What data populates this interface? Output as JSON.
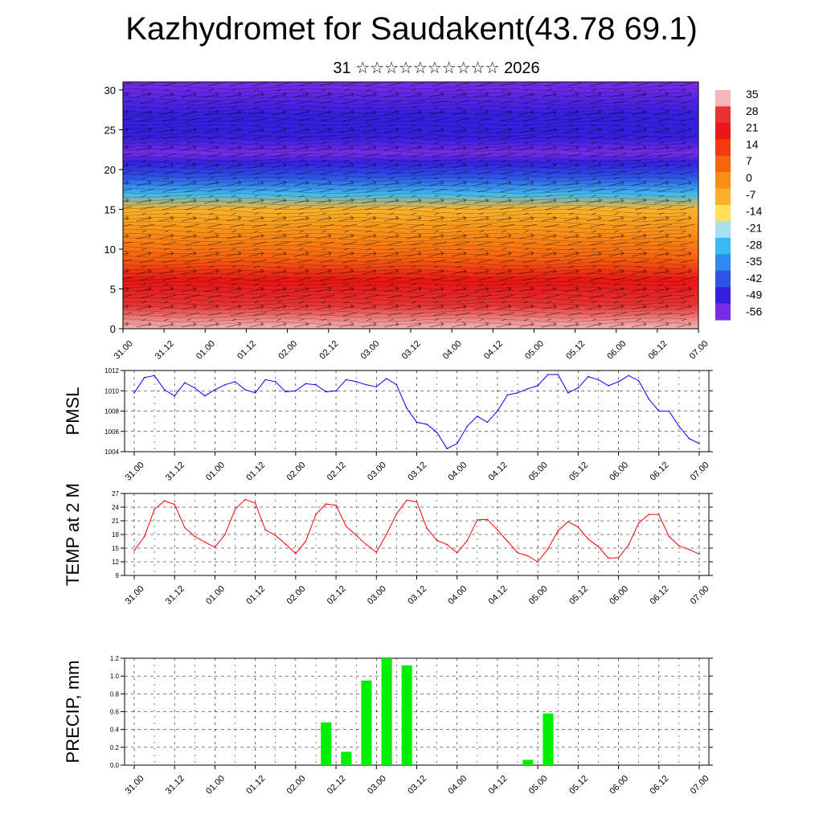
{
  "title": "Kazhydromet for Saudakent(43.78 69.1)",
  "subtitle": "31 ☆☆☆☆☆☆☆☆☆☆ 2026",
  "time_labels": [
    "31.00",
    "31.12",
    "01.00",
    "01.12",
    "02.00",
    "02.12",
    "03.00",
    "03.12",
    "04.00",
    "04.12",
    "05.00",
    "05.12",
    "06.00",
    "06.12",
    "07.00"
  ],
  "chart_data": [
    {
      "type": "heatmap",
      "name": "temperature-height-section",
      "ylim": [
        0,
        31
      ],
      "yticks": [
        0,
        5,
        10,
        15,
        20,
        25,
        30
      ],
      "colorbar": {
        "labels": [
          "35",
          "28",
          "21",
          "14",
          "7",
          "0",
          "-7",
          "-14",
          "-21",
          "-28",
          "-35",
          "-42",
          "-49",
          "-56"
        ],
        "colors": [
          "#F4B6B6",
          "#E63333",
          "#E81616",
          "#F23A10",
          "#F7640F",
          "#F98E17",
          "#FBB22A",
          "#FFE15A",
          "#A9E0F2",
          "#3DB8F0",
          "#2B8CEB",
          "#2F54E5",
          "#3520E0",
          "#7A2BE6"
        ]
      },
      "approx_temperature_profile": {
        "heights": [
          0,
          3,
          6,
          9,
          12,
          15,
          17,
          19,
          21,
          22,
          24,
          27,
          31
        ],
        "values": [
          35,
          26,
          18,
          10,
          2,
          -10,
          -25,
          -40,
          -52,
          -56,
          -48,
          -52,
          -60
        ]
      }
    },
    {
      "type": "line",
      "name": "pmsl",
      "ylabel": "PMSL",
      "ylim": [
        1004,
        1012
      ],
      "yticks": [
        1004,
        1006,
        1008,
        1010,
        1012
      ],
      "color": "#0000FF",
      "values": [
        1009.8,
        1011.3,
        1011.5,
        1010.1,
        1009.5,
        1010.8,
        1010.3,
        1009.5,
        1010.1,
        1010.6,
        1010.9,
        1010.1,
        1009.8,
        1011.1,
        1010.9,
        1009.9,
        1010.0,
        1010.7,
        1010.6,
        1009.9,
        1010.0,
        1011.1,
        1010.9,
        1010.6,
        1010.4,
        1011.2,
        1010.6,
        1008.3,
        1006.9,
        1006.7,
        1005.9,
        1004.3,
        1004.8,
        1006.5,
        1007.5,
        1006.9,
        1008.0,
        1009.6,
        1009.8,
        1010.2,
        1010.5,
        1011.6,
        1011.6,
        1009.8,
        1010.3,
        1011.4,
        1011.1,
        1010.5,
        1010.9,
        1011.5,
        1011.0,
        1009.2,
        1008.0,
        1008.0,
        1006.5,
        1005.3,
        1004.8
      ]
    },
    {
      "type": "line",
      "name": "temp-2m",
      "ylabel": "TEMP at 2 M",
      "ylim": [
        9,
        27
      ],
      "yticks": [
        9,
        12,
        15,
        18,
        21,
        24,
        27
      ],
      "color": "#FF0000",
      "values": [
        14.5,
        17.5,
        23.5,
        25.4,
        24.6,
        19.5,
        17.6,
        16.3,
        15.2,
        18.0,
        23.5,
        25.7,
        24.9,
        19.0,
        17.8,
        15.9,
        13.8,
        16.5,
        22.4,
        24.7,
        24.4,
        19.8,
        17.8,
        15.8,
        14.1,
        18.0,
        22.5,
        25.5,
        25.2,
        19.4,
        16.7,
        15.8,
        14.0,
        16.6,
        21.2,
        21.3,
        19.0,
        16.5,
        14.0,
        13.3,
        12.0,
        14.8,
        18.8,
        20.8,
        19.6,
        17.0,
        15.3,
        12.8,
        12.9,
        15.7,
        20.5,
        22.4,
        22.4,
        17.6,
        15.5,
        14.7,
        13.7
      ]
    },
    {
      "type": "bar",
      "name": "precip",
      "ylabel": "PRECIP, mm",
      "ylim": [
        0,
        1.2
      ],
      "yticks": [
        "0.0",
        "0.2",
        "0.4",
        "0.6",
        "0.8",
        "1.0",
        "1.2"
      ],
      "color": "#00EE00",
      "bars": [
        {
          "t": 9.5,
          "v": 0.48
        },
        {
          "t": 10.5,
          "v": 0.15
        },
        {
          "t": 11.5,
          "v": 0.95
        },
        {
          "t": 12.5,
          "v": 1.2
        },
        {
          "t": 13.5,
          "v": 1.12
        },
        {
          "t": 19.5,
          "v": 0.06
        },
        {
          "t": 20.5,
          "v": 0.58
        }
      ]
    }
  ]
}
